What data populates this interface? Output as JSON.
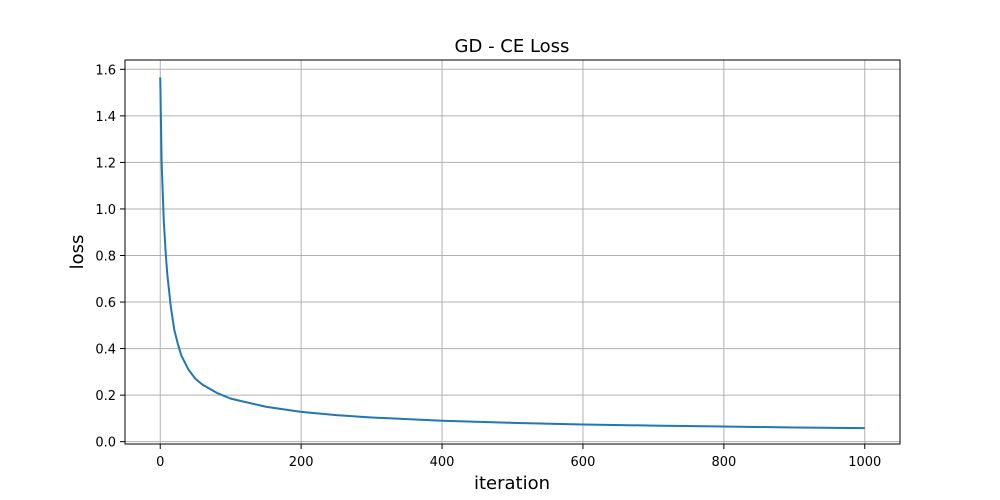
{
  "chart_data": {
    "type": "line",
    "title": "GD - CE Loss",
    "xlabel": "iteration",
    "ylabel": "loss",
    "xlim": [
      -50,
      1050
    ],
    "ylim": [
      -0.01,
      1.64
    ],
    "grid": true,
    "x_ticks": [
      0,
      200,
      400,
      600,
      800,
      1000
    ],
    "x_tick_labels": [
      "0",
      "200",
      "400",
      "600",
      "800",
      "1000"
    ],
    "y_ticks": [
      0.0,
      0.2,
      0.4,
      0.6,
      0.8,
      1.0,
      1.2,
      1.4,
      1.6
    ],
    "y_tick_labels": [
      "0.0",
      "0.2",
      "0.4",
      "0.6",
      "0.8",
      "1.0",
      "1.2",
      "1.4",
      "1.6"
    ],
    "series": [
      {
        "color": "#1f77b4",
        "x": [
          0,
          2,
          5,
          8,
          10,
          15,
          20,
          25,
          30,
          40,
          50,
          60,
          80,
          100,
          150,
          200,
          250,
          300,
          400,
          500,
          600,
          700,
          800,
          900,
          1000
        ],
        "y": [
          1.565,
          1.2,
          0.95,
          0.8,
          0.72,
          0.58,
          0.48,
          0.42,
          0.37,
          0.31,
          0.27,
          0.245,
          0.21,
          0.185,
          0.15,
          0.128,
          0.114,
          0.104,
          0.09,
          0.081,
          0.074,
          0.069,
          0.065,
          0.061,
          0.058
        ]
      }
    ]
  }
}
